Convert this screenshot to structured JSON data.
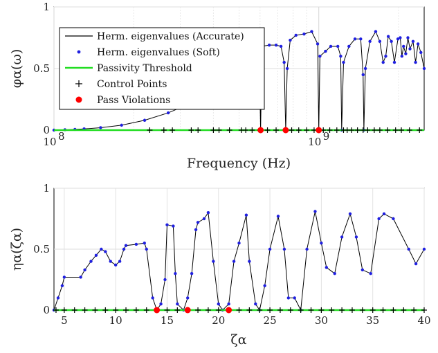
{
  "chart_data": [
    {
      "type": "line",
      "xscale": "log",
      "xlim": [
        100000000,
        2500000000
      ],
      "ylim": [
        0,
        1
      ],
      "grid": true,
      "xlabel": "Frequency (Hz)",
      "ylabel": "φα(ω)",
      "x_tick_labels": [
        {
          "value": 100000000,
          "label": "10",
          "exp": "8"
        },
        {
          "value": 1000000000,
          "label": "10",
          "exp": "9"
        }
      ],
      "y_ticks": [
        {
          "value": 0,
          "label": "0"
        },
        {
          "value": 0.5,
          "label": "0.5"
        },
        {
          "value": 1,
          "label": "1"
        }
      ],
      "legend": {
        "placement": "top-left",
        "entries": [
          {
            "label": "Herm. eigenvalues (Accurate)",
            "style": "black-line"
          },
          {
            "label": "Herm. eigenvalues (Soft)",
            "style": "blue-dot"
          },
          {
            "label": "Passivity Threshold",
            "style": "green-line"
          },
          {
            "label": "Control Points",
            "style": "plus"
          },
          {
            "label": "Pass Violations",
            "style": "red-dot"
          }
        ]
      },
      "series": [
        {
          "name": "Herm. eigenvalues (Accurate)",
          "color": "#000000",
          "x": [
            100000000,
            110000000,
            120000000,
            130000000,
            150000000,
            180000000,
            220000000,
            270000000,
            330000000,
            400000000,
            480000000,
            550000000,
            580000000,
            590000000,
            600000000,
            603000000,
            610000000,
            650000000,
            690000000,
            720000000,
            740000000,
            750000000,
            760000000,
            780000000,
            820000000,
            880000000,
            940000000,
            990000000,
            1000000000,
            1010000000,
            1060000000,
            1110000000,
            1180000000,
            1210000000,
            1220000000,
            1240000000,
            1300000000,
            1370000000,
            1440000000,
            1470000000,
            1480000000,
            1500000000,
            1560000000,
            1640000000,
            1700000000,
            1750000000,
            1790000000,
            1830000000,
            1880000000,
            1930000000,
            1990000000,
            2030000000,
            2060000000,
            2090000000,
            2130000000,
            2170000000,
            2210000000,
            2270000000,
            2320000000,
            2370000000,
            2430000000,
            2500000000
          ],
          "y": [
            0,
            0.003,
            0.006,
            0.01,
            0.02,
            0.04,
            0.08,
            0.14,
            0.22,
            0.32,
            0.44,
            0.55,
            0.54,
            0.45,
            0.25,
            0,
            0.68,
            0.69,
            0.69,
            0.68,
            0.55,
            0,
            0.5,
            0.73,
            0.77,
            0.78,
            0.8,
            0.7,
            0,
            0.6,
            0.64,
            0.68,
            0.68,
            0.6,
            0,
            0.55,
            0.68,
            0.74,
            0.74,
            0.45,
            0,
            0.5,
            0.72,
            0.8,
            0.72,
            0.55,
            0.6,
            0.76,
            0.72,
            0.55,
            0.74,
            0.75,
            0.6,
            0.68,
            0.62,
            0.75,
            0.66,
            0.72,
            0.55,
            0.7,
            0.63,
            0.5
          ]
        },
        {
          "name": "Herm. eigenvalues (Soft)",
          "color": "#1f1fe0",
          "x": [
            100000000,
            110000000,
            120000000,
            130000000,
            150000000,
            180000000,
            220000000,
            270000000,
            330000000,
            400000000,
            480000000,
            550000000,
            580000000,
            590000000,
            600000000,
            603000000,
            610000000,
            650000000,
            690000000,
            720000000,
            740000000,
            750000000,
            760000000,
            780000000,
            820000000,
            880000000,
            940000000,
            990000000,
            1000000000,
            1010000000,
            1060000000,
            1110000000,
            1180000000,
            1210000000,
            1220000000,
            1240000000,
            1300000000,
            1370000000,
            1440000000,
            1470000000,
            1480000000,
            1500000000,
            1560000000,
            1640000000,
            1700000000,
            1750000000,
            1790000000,
            1830000000,
            1880000000,
            1930000000,
            1990000000,
            2030000000,
            2060000000,
            2090000000,
            2130000000,
            2170000000,
            2210000000,
            2270000000,
            2320000000,
            2370000000,
            2430000000,
            2500000000
          ],
          "y": [
            0,
            0.003,
            0.006,
            0.01,
            0.02,
            0.04,
            0.08,
            0.14,
            0.22,
            0.32,
            0.44,
            0.55,
            0.54,
            0.45,
            0.25,
            0,
            0.68,
            0.69,
            0.69,
            0.68,
            0.55,
            0,
            0.5,
            0.73,
            0.77,
            0.78,
            0.8,
            0.7,
            0,
            0.6,
            0.64,
            0.68,
            0.68,
            0.6,
            0,
            0.55,
            0.68,
            0.74,
            0.74,
            0.45,
            0,
            0.5,
            0.72,
            0.8,
            0.72,
            0.55,
            0.6,
            0.76,
            0.72,
            0.55,
            0.74,
            0.75,
            0.6,
            0.68,
            0.62,
            0.75,
            0.66,
            0.72,
            0.55,
            0.7,
            0.63,
            0.5
          ]
        },
        {
          "name": "Passivity Threshold",
          "color": "#22dd22",
          "x": [
            100000000,
            2500000000
          ],
          "y": [
            0,
            0
          ]
        },
        {
          "name": "Control Points",
          "color": "#000000",
          "x": [
            230000000,
            260000000,
            280000000,
            330000000,
            350000000,
            400000000,
            420000000,
            460000000,
            510000000,
            530000000,
            560000000,
            600000000,
            640000000,
            690000000,
            750000000,
            790000000,
            840000000,
            900000000,
            960000000,
            1000000000,
            1040000000,
            1100000000,
            1170000000,
            1240000000,
            1280000000,
            1330000000,
            1400000000,
            1470000000,
            1530000000,
            1620000000,
            1700000000,
            1820000000,
            1950000000,
            2050000000,
            2200000000,
            2400000000
          ],
          "y": [
            0,
            0,
            0,
            0,
            0,
            0,
            0,
            0,
            0,
            0,
            0,
            0,
            0,
            0,
            0,
            0,
            0,
            0,
            0,
            0,
            0,
            0,
            0,
            0,
            0,
            0,
            0,
            0,
            0,
            0,
            0,
            0,
            0,
            0,
            0,
            0
          ]
        },
        {
          "name": "Pass Violations",
          "color": "#ff0000",
          "x": [
            603000000,
            750000000,
            1000000000
          ],
          "y": [
            0,
            0,
            0
          ]
        }
      ]
    },
    {
      "type": "line",
      "xlim": [
        4,
        40
      ],
      "ylim": [
        0,
        1
      ],
      "grid": true,
      "xlabel": "ζα",
      "ylabel": "ηα(ζα)",
      "x_ticks": [
        {
          "value": 5,
          "label": "5"
        },
        {
          "value": 10,
          "label": "10"
        },
        {
          "value": 15,
          "label": "15"
        },
        {
          "value": 20,
          "label": "20"
        },
        {
          "value": 25,
          "label": "25"
        },
        {
          "value": 30,
          "label": "30"
        },
        {
          "value": 35,
          "label": "35"
        },
        {
          "value": 40,
          "label": "40"
        }
      ],
      "y_ticks": [
        {
          "value": 0,
          "label": "0"
        },
        {
          "value": 0.5,
          "label": "0.5"
        },
        {
          "value": 1,
          "label": "1"
        }
      ],
      "series": [
        {
          "name": "Herm. eigenvalues (Accurate)",
          "color": "#000000",
          "x": [
            4,
            4.4,
            4.8,
            5,
            6.6,
            7,
            7.6,
            8.1,
            8.6,
            9,
            9.5,
            10,
            10.4,
            10.8,
            11,
            12,
            12.8,
            13,
            13.6,
            14,
            14.4,
            14.8,
            15,
            15.6,
            15.8,
            16,
            16.6,
            17,
            17.4,
            17.8,
            18,
            18.6,
            19,
            19.5,
            20,
            20.4,
            21,
            21.5,
            22,
            22.7,
            23,
            23.6,
            24,
            24.5,
            25,
            25.8,
            26.4,
            26.8,
            27.4,
            28,
            28.6,
            29.4,
            30,
            30.5,
            31.3,
            32,
            32.8,
            33.4,
            34,
            34.8,
            35.6,
            36.1,
            37,
            38.5,
            39.2,
            40
          ],
          "y": [
            0,
            0.1,
            0.2,
            0.27,
            0.27,
            0.33,
            0.4,
            0.45,
            0.5,
            0.48,
            0.4,
            0.37,
            0.4,
            0.5,
            0.53,
            0.54,
            0.55,
            0.5,
            0.1,
            0,
            0.05,
            0.25,
            0.7,
            0.69,
            0.3,
            0.05,
            0,
            0.1,
            0.3,
            0.66,
            0.72,
            0.75,
            0.8,
            0.4,
            0.05,
            0,
            0.05,
            0.4,
            0.55,
            0.78,
            0.4,
            0.05,
            0,
            0.2,
            0.5,
            0.77,
            0.5,
            0.1,
            0.1,
            0,
            0.5,
            0.81,
            0.55,
            0.35,
            0.3,
            0.6,
            0.79,
            0.6,
            0.33,
            0.3,
            0.75,
            0.79,
            0.75,
            0.5,
            0.38,
            0.5
          ]
        },
        {
          "name": "Herm. eigenvalues (Soft)",
          "color": "#1f1fe0",
          "x": [
            4,
            4.4,
            4.8,
            5,
            6.6,
            7,
            7.6,
            8.1,
            8.6,
            9,
            9.5,
            10,
            10.4,
            10.8,
            11,
            12,
            12.8,
            13,
            13.6,
            14,
            14.4,
            14.8,
            15,
            15.6,
            15.8,
            16,
            16.6,
            17,
            17.4,
            17.8,
            18,
            18.6,
            19,
            19.5,
            20,
            20.4,
            21,
            21.5,
            22,
            22.7,
            23,
            23.6,
            24,
            24.5,
            25,
            25.8,
            26.4,
            26.8,
            27.4,
            28,
            28.6,
            29.4,
            30,
            30.5,
            31.3,
            32,
            32.8,
            33.4,
            34,
            34.8,
            35.6,
            36.1,
            37,
            38.5,
            39.2,
            40
          ],
          "y": [
            0,
            0.1,
            0.2,
            0.27,
            0.27,
            0.33,
            0.4,
            0.45,
            0.5,
            0.48,
            0.4,
            0.37,
            0.4,
            0.5,
            0.53,
            0.54,
            0.55,
            0.5,
            0.1,
            0,
            0.05,
            0.25,
            0.7,
            0.69,
            0.3,
            0.05,
            0,
            0.1,
            0.3,
            0.66,
            0.72,
            0.75,
            0.8,
            0.4,
            0.05,
            0,
            0.05,
            0.4,
            0.55,
            0.78,
            0.4,
            0.05,
            0,
            0.2,
            0.5,
            0.77,
            0.5,
            0.1,
            0.1,
            0,
            0.5,
            0.81,
            0.55,
            0.35,
            0.3,
            0.6,
            0.79,
            0.6,
            0.33,
            0.3,
            0.75,
            0.79,
            0.75,
            0.5,
            0.38,
            0.5
          ]
        },
        {
          "name": "Passivity Threshold",
          "color": "#22dd22",
          "x": [
            4,
            40
          ],
          "y": [
            0,
            0
          ]
        },
        {
          "name": "Control Points",
          "color": "#000000",
          "x": [
            4.2,
            5,
            6,
            7,
            8,
            9,
            10,
            11,
            12,
            13,
            14,
            15,
            16,
            17,
            18,
            19,
            20,
            21,
            22,
            23,
            24,
            25,
            26,
            27,
            28,
            29,
            30,
            31,
            32,
            33,
            34,
            35,
            36,
            37,
            38,
            39,
            40
          ],
          "y": [
            0,
            0,
            0,
            0,
            0,
            0,
            0,
            0,
            0,
            0,
            0,
            0,
            0,
            0,
            0,
            0,
            0,
            0,
            0,
            0,
            0,
            0,
            0,
            0,
            0,
            0,
            0,
            0,
            0,
            0,
            0,
            0,
            0,
            0,
            0,
            0,
            0
          ]
        },
        {
          "name": "Pass Violations",
          "color": "#ff0000",
          "x": [
            14,
            17,
            21
          ],
          "y": [
            0,
            0,
            0
          ]
        }
      ]
    }
  ]
}
